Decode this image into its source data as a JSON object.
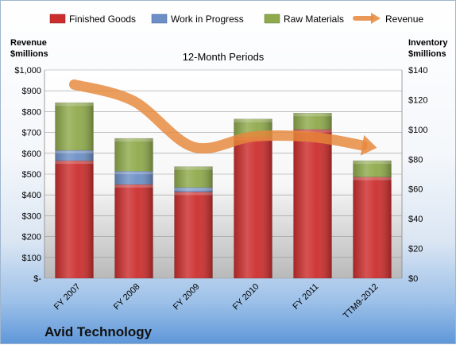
{
  "chart_data": {
    "type": "bar",
    "title": "12-Month Periods",
    "footer": "Avid Technology",
    "categories": [
      "FY 2007",
      "FY 2008",
      "FY 2009",
      "FY 2010",
      "FY 2011",
      "TTM9-2012"
    ],
    "series": [
      {
        "name": "Finished Goods",
        "axis": "right",
        "color": "#cc2e2e",
        "values": [
          79,
          63,
          58,
          95,
          100,
          68
        ]
      },
      {
        "name": "Work in Progress",
        "axis": "right",
        "color": "#6d8fc6",
        "values": [
          7,
          9,
          3,
          0,
          0,
          0
        ]
      },
      {
        "name": "Raw Materials",
        "axis": "right",
        "color": "#8faa4c",
        "values": [
          32,
          22,
          14,
          12,
          11,
          11
        ]
      },
      {
        "name": "Revenue",
        "axis": "left",
        "type": "line",
        "color": "#e7873a",
        "values": [
          930,
          850,
          630,
          680,
          678,
          630
        ]
      }
    ],
    "left_axis": {
      "title_lines": [
        "Revenue",
        "$millions"
      ],
      "ylim": [
        0,
        1000
      ],
      "ticks": [
        "$-",
        "$100",
        "$200",
        "$300",
        "$400",
        "$500",
        "$600",
        "$700",
        "$800",
        "$900",
        "$1,000"
      ]
    },
    "right_axis": {
      "title_lines": [
        "Inventory",
        "$millions"
      ],
      "ylim": [
        0,
        140
      ],
      "ticks": [
        "$0",
        "$20",
        "$40",
        "$60",
        "$80",
        "$100",
        "$120",
        "$140"
      ]
    },
    "grid": true,
    "legend_position": "top"
  }
}
